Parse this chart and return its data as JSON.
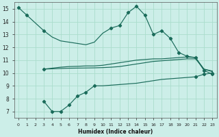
{
  "xlabel": "Humidex (Indice chaleur)",
  "bg_color": "#cceee8",
  "grid_color": "#aaddcc",
  "line_color": "#1a6b5a",
  "xlim": [
    -0.5,
    23.5
  ],
  "ylim": [
    6.5,
    15.5
  ],
  "xticks": [
    0,
    1,
    2,
    3,
    4,
    5,
    6,
    7,
    8,
    9,
    10,
    11,
    12,
    13,
    14,
    15,
    16,
    17,
    18,
    19,
    20,
    21,
    22,
    23
  ],
  "yticks": [
    7,
    8,
    9,
    10,
    11,
    12,
    13,
    14,
    15
  ],
  "curve_top": {
    "x": [
      0,
      1,
      2,
      3,
      4,
      5,
      6,
      7,
      8,
      9,
      10,
      11,
      12,
      13,
      14,
      15,
      16,
      17,
      18,
      19,
      20,
      21,
      22,
      23
    ],
    "y": [
      15.1,
      14.5,
      13.9,
      13.3,
      12.8,
      12.5,
      12.4,
      12.3,
      12.2,
      12.4,
      13.1,
      13.5,
      13.7,
      14.7,
      15.2,
      14.5,
      13.0,
      13.3,
      12.7,
      11.6,
      11.3,
      11.2,
      10.2,
      9.9
    ]
  },
  "curve_mid_top": {
    "x": [
      3,
      5,
      6,
      7,
      8,
      9,
      10,
      11,
      12,
      13,
      14,
      15,
      16,
      17,
      18,
      19,
      20,
      21,
      22,
      23
    ],
    "y": [
      10.3,
      10.45,
      10.5,
      10.52,
      10.55,
      10.55,
      10.6,
      10.7,
      10.8,
      10.9,
      11.0,
      11.05,
      11.1,
      11.1,
      11.15,
      11.2,
      11.25,
      11.2,
      10.3,
      10.15
    ]
  },
  "curve_mid_bot": {
    "x": [
      3,
      5,
      6,
      7,
      8,
      9,
      10,
      11,
      12,
      13,
      14,
      15,
      16,
      17,
      18,
      19,
      20,
      21,
      22,
      23
    ],
    "y": [
      10.3,
      10.35,
      10.37,
      10.38,
      10.39,
      10.4,
      10.42,
      10.45,
      10.5,
      10.6,
      10.7,
      10.8,
      10.9,
      10.95,
      11.0,
      11.05,
      11.1,
      11.1,
      10.3,
      10.1
    ]
  },
  "curve_bot": {
    "x": [
      3,
      4,
      5,
      6,
      7,
      8,
      9,
      10,
      11,
      12,
      13,
      14,
      15,
      16,
      17,
      18,
      19,
      20,
      21,
      22,
      23
    ],
    "y": [
      7.8,
      7.0,
      7.0,
      7.5,
      8.2,
      8.5,
      9.0,
      9.0,
      9.05,
      9.1,
      9.15,
      9.2,
      9.3,
      9.4,
      9.5,
      9.55,
      9.6,
      9.65,
      9.7,
      9.9,
      10.0
    ]
  }
}
